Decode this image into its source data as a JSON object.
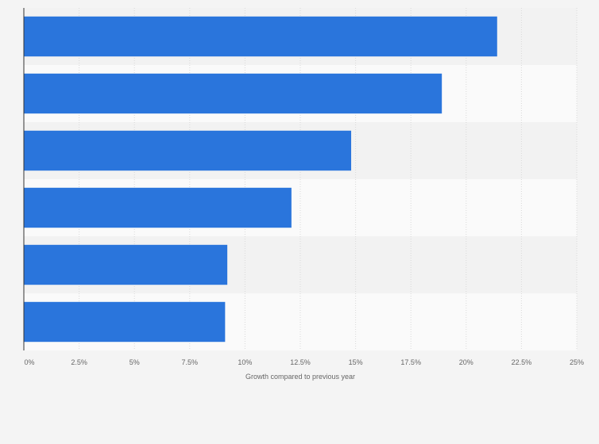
{
  "chart_data": {
    "type": "bar",
    "orientation": "horizontal",
    "categories": [
      "",
      "",
      "",
      "",
      "",
      ""
    ],
    "values": [
      21.4,
      18.9,
      14.8,
      12.1,
      9.2,
      9.1
    ],
    "xlabel": "Growth compared to previous year",
    "ylabel": "",
    "xlim": [
      0,
      25
    ],
    "ticks": [
      0,
      2.5,
      5,
      7.5,
      10,
      12.5,
      15,
      17.5,
      20,
      22.5,
      25
    ],
    "tick_labels": [
      "0%",
      "2.5%",
      "5%",
      "7.5%",
      "10%",
      "12.5%",
      "15%",
      "17.5%",
      "20%",
      "22.5%",
      "25%"
    ],
    "grid": true,
    "bar_color": "#2a75dc",
    "band_colors": [
      "#f2f2f2",
      "#fafafa"
    ]
  }
}
